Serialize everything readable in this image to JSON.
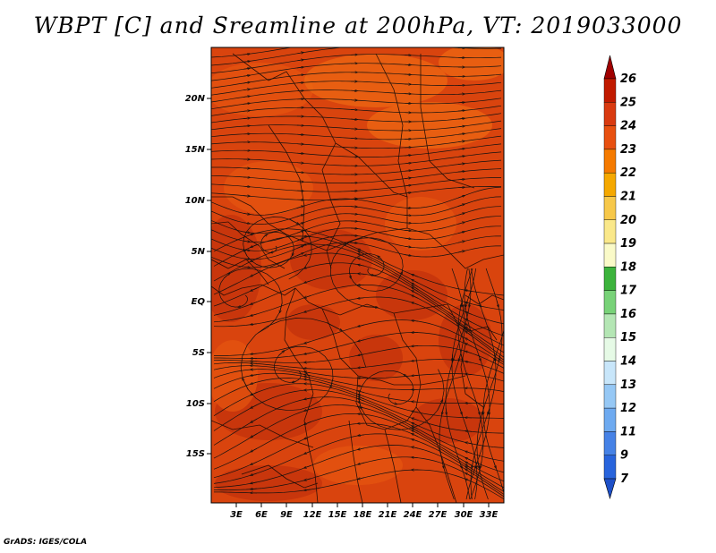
{
  "title": "WBPT [C] and Sreamline at 200hPa, VT: 2019033000",
  "credit": "GrADS: IGES/COLA",
  "map": {
    "lat_labels": [
      "20N",
      "15N",
      "10N",
      "5N",
      "EQ",
      "5S",
      "10S",
      "15S"
    ],
    "lon_labels": [
      "3E",
      "6E",
      "9E",
      "12E",
      "15E",
      "18E",
      "21E",
      "24E",
      "27E",
      "30E",
      "33E"
    ],
    "lon_range": [
      0,
      35
    ],
    "lat_range": [
      -20,
      24
    ],
    "field_colors": {
      "dark": "#c0300c",
      "mid": "#d9440e",
      "warm": "#e5560f",
      "light": "#ee6a12"
    }
  },
  "colorbar": {
    "levels": [
      "26",
      "25",
      "24",
      "23",
      "22",
      "21",
      "20",
      "19",
      "18",
      "17",
      "16",
      "15",
      "14",
      "13",
      "12",
      "11",
      "9",
      "7"
    ],
    "colors": [
      "#a00000",
      "#c11a00",
      "#d93a10",
      "#e85010",
      "#f57a00",
      "#f5a800",
      "#f7c84a",
      "#fae88a",
      "#fafac8",
      "#3cb33c",
      "#78d278",
      "#b4e6b4",
      "#e6fae6",
      "#c8e6fa",
      "#96c8f5",
      "#6eaaf0",
      "#4682e6",
      "#2864dc",
      "#1e50c8"
    ]
  }
}
